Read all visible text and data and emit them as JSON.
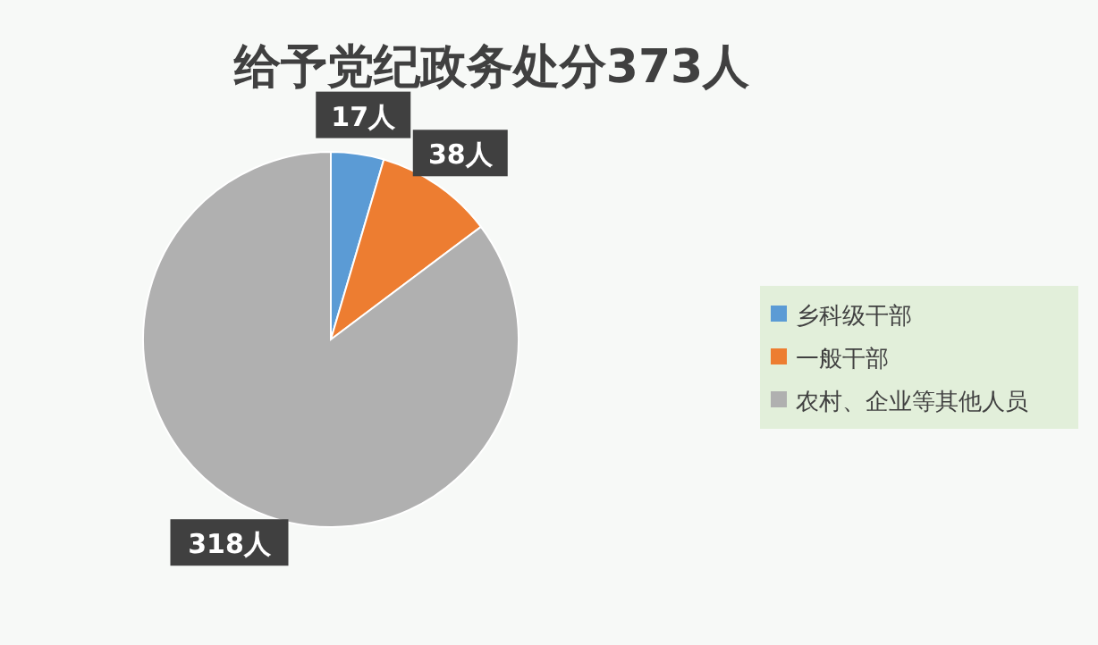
{
  "chart_data": {
    "type": "pie",
    "title": "给予党纪政务处分373人",
    "categories": [
      "乡科级干部",
      "一般干部",
      "农村、企业等其他人员"
    ],
    "values": [
      17,
      38,
      318
    ],
    "colors": [
      "#5b9bd5",
      "#ed7d31",
      "#b0b0b0"
    ],
    "value_labels": [
      "17人",
      "38人",
      "318人"
    ],
    "legend": "right"
  }
}
